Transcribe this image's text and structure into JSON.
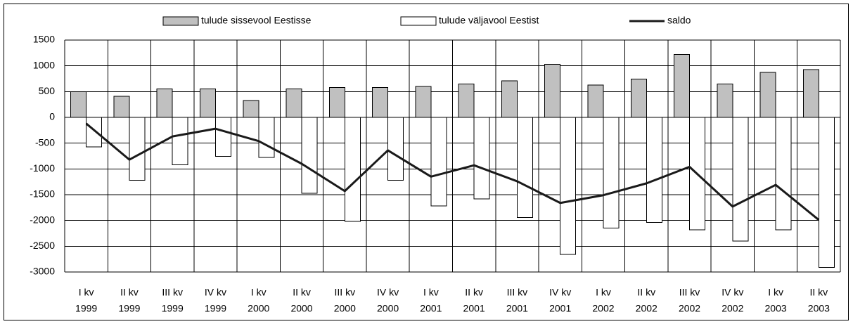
{
  "chart_data": {
    "type": "bar_line",
    "categories": [
      [
        "I kv",
        "1999"
      ],
      [
        "II kv",
        "1999"
      ],
      [
        "III kv",
        "1999"
      ],
      [
        "IV kv",
        "1999"
      ],
      [
        "I kv",
        "2000"
      ],
      [
        "II kv",
        "2000"
      ],
      [
        "III kv",
        "2000"
      ],
      [
        "IV kv",
        "2000"
      ],
      [
        "I kv",
        "2001"
      ],
      [
        "II kv",
        "2001"
      ],
      [
        "III kv",
        "2001"
      ],
      [
        "IV kv",
        "2001"
      ],
      [
        "I kv",
        "2002"
      ],
      [
        "II kv",
        "2002"
      ],
      [
        "III kv",
        "2002"
      ],
      [
        "IV kv",
        "2002"
      ],
      [
        "I kv",
        "2003"
      ],
      [
        "II kv",
        "2003"
      ]
    ],
    "series": [
      {
        "name": "tulude sissevool Eestisse",
        "kind": "bar",
        "color": "#c0c0c0",
        "values": [
          500,
          410,
          550,
          550,
          330,
          550,
          580,
          580,
          600,
          650,
          710,
          1030,
          630,
          740,
          1220,
          650,
          870,
          930
        ]
      },
      {
        "name": "tulude väljavool Eestist",
        "kind": "bar",
        "color": "#ffffff",
        "values": [
          -570,
          -1220,
          -920,
          -760,
          -780,
          -1470,
          -2020,
          -1220,
          -1720,
          -1580,
          -1940,
          -2660,
          -2150,
          -2040,
          -2180,
          -2400,
          -2180,
          -2910
        ]
      },
      {
        "name": "saldo",
        "kind": "line",
        "color": "#1a1a1a",
        "values": [
          -120,
          -820,
          -370,
          -220,
          -460,
          -900,
          -1430,
          -640,
          -1150,
          -930,
          -1240,
          -1660,
          -1510,
          -1280,
          -960,
          -1730,
          -1310,
          -1990
        ]
      }
    ],
    "ylim": [
      -3000,
      1500
    ],
    "yticks": [
      -3000,
      -2500,
      -2000,
      -1500,
      -1000,
      -500,
      0,
      500,
      1000,
      1500
    ],
    "ytick_labels_override": null,
    "grid": true,
    "legend": "top"
  }
}
